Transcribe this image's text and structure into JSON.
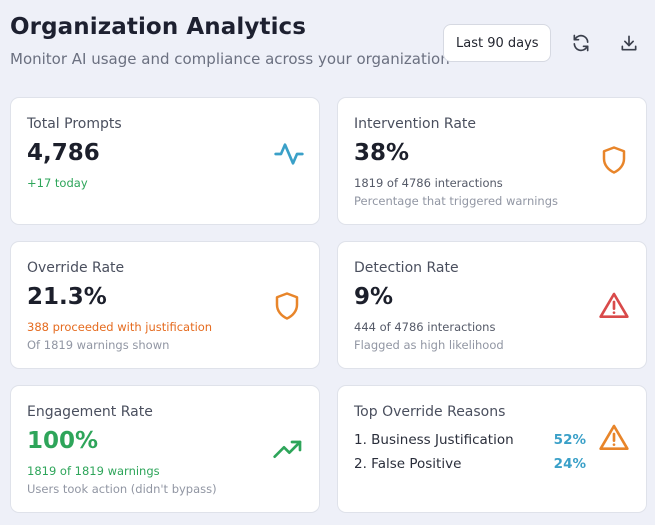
{
  "header": {
    "title": "Organization Analytics",
    "subtitle": "Monitor AI usage and compliance across your organization",
    "range_value": "Last 90 days"
  },
  "icons": {
    "refresh": "refresh-icon",
    "download": "download-icon",
    "activity": "activity-icon",
    "shield": "shield-icon",
    "alert": "alert-triangle-icon",
    "trending": "trending-up-icon"
  },
  "colors": {
    "teal": "#3aa0c8",
    "orange": "#e8852a",
    "red": "#d94a4a",
    "green": "#2ea55a"
  },
  "cards": {
    "total_prompts": {
      "label": "Total Prompts",
      "value": "4,786",
      "sub1": "+17 today"
    },
    "intervention_rate": {
      "label": "Intervention Rate",
      "value": "38%",
      "sub1": "1819 of 4786 interactions",
      "sub2": "Percentage that triggered warnings"
    },
    "override_rate": {
      "label": "Override Rate",
      "value": "21.3%",
      "sub1": "388 proceeded with justification",
      "sub2": "Of 1819 warnings shown"
    },
    "detection_rate": {
      "label": "Detection Rate",
      "value": "9%",
      "sub1": "444 of 4786 interactions",
      "sub2": "Flagged as high likelihood"
    },
    "engagement_rate": {
      "label": "Engagement Rate",
      "value": "100%",
      "sub1": "1819 of 1819 warnings",
      "sub2": "Users took action (didn't bypass)"
    },
    "top_override_reasons": {
      "label": "Top Override Reasons",
      "reasons": [
        {
          "name": "1. Business Justification",
          "pct": "52%"
        },
        {
          "name": "2. False Positive",
          "pct": "24%"
        }
      ]
    }
  }
}
